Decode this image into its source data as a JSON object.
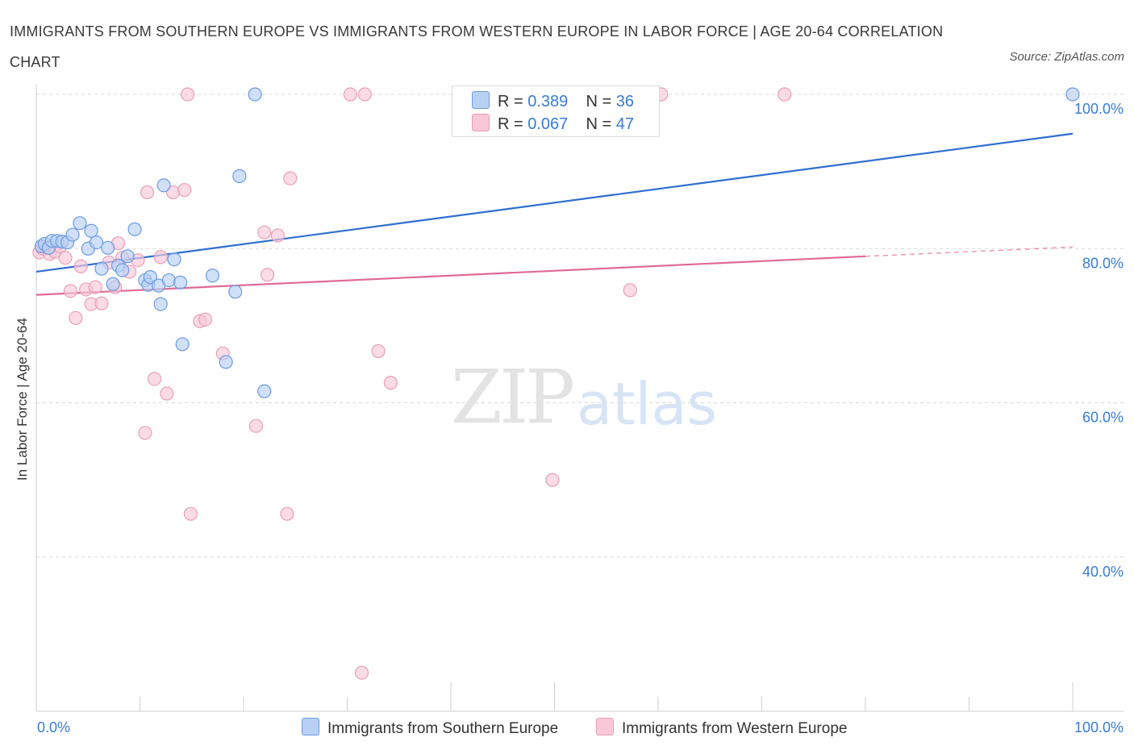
{
  "title": "IMMIGRANTS FROM SOUTHERN EUROPE VS IMMIGRANTS FROM WESTERN EUROPE IN LABOR FORCE | AGE 20-64 CORRELATION CHART",
  "source": "Source: ZipAtlas.com",
  "watermark": {
    "zip": "ZIP",
    "atlas": "atlas"
  },
  "legend_top": [
    {
      "r_label": "R =",
      "r_value": "0.389",
      "n_label": "N =",
      "n_value": "36"
    },
    {
      "r_label": "R =",
      "r_value": "0.067",
      "n_label": "N =",
      "n_value": "47"
    }
  ],
  "colors": {
    "blue_fill": "#b7d0f4",
    "blue_stroke": "#6b9be0",
    "blue_line": "#2e6fd0",
    "pink_fill": "#f8c8d8",
    "pink_stroke": "#e8a0b8",
    "pink_line": "#e06a96",
    "tick_label": "#3a7bd5",
    "grid": "#d8d8d8"
  },
  "chart_data": {
    "type": "scatter",
    "title": "IMMIGRANTS FROM SOUTHERN EUROPE VS IMMIGRANTS FROM WESTERN EUROPE IN LABOR FORCE | AGE 20-64 CORRELATION CHART",
    "xlabel": "",
    "ylabel": "In Labor Force | Age 20-64",
    "xlim": [
      0,
      100
    ],
    "ylim": [
      20,
      100
    ],
    "x_tick_labels": [
      "0.0%",
      "100.0%"
    ],
    "y_ticks": [
      40,
      60,
      80,
      100
    ],
    "y_tick_labels": [
      "40.0%",
      "60.0%",
      "80.0%",
      "100.0%"
    ],
    "grid": true,
    "legend_position": "top-center",
    "series": [
      {
        "name": "Immigrants from Southern Europe",
        "color": "#6b9be0",
        "trend": {
          "x": [
            0,
            100
          ],
          "y": [
            77.0,
            94.9
          ]
        },
        "points": [
          [
            0.5,
            80.3
          ],
          [
            0.8,
            80.6
          ],
          [
            1.2,
            80.1
          ],
          [
            1.5,
            81.0
          ],
          [
            2.0,
            81.0
          ],
          [
            2.5,
            80.9
          ],
          [
            3.0,
            80.8
          ],
          [
            3.5,
            81.8
          ],
          [
            4.2,
            83.3
          ],
          [
            5.0,
            80.0
          ],
          [
            5.3,
            82.3
          ],
          [
            5.8,
            80.8
          ],
          [
            6.3,
            77.4
          ],
          [
            6.9,
            80.1
          ],
          [
            7.4,
            75.4
          ],
          [
            7.9,
            77.8
          ],
          [
            8.3,
            77.2
          ],
          [
            8.8,
            79.0
          ],
          [
            9.5,
            82.5
          ],
          [
            10.5,
            75.9
          ],
          [
            10.8,
            75.3
          ],
          [
            11.0,
            76.3
          ],
          [
            11.8,
            75.2
          ],
          [
            12.0,
            72.8
          ],
          [
            12.3,
            88.2
          ],
          [
            12.8,
            75.9
          ],
          [
            13.3,
            78.6
          ],
          [
            13.9,
            75.6
          ],
          [
            14.1,
            67.6
          ],
          [
            17.0,
            76.5
          ],
          [
            18.3,
            65.3
          ],
          [
            19.2,
            74.4
          ],
          [
            19.6,
            89.4
          ],
          [
            21.1,
            100.0
          ],
          [
            22.0,
            61.5
          ],
          [
            100.0,
            100.0
          ]
        ]
      },
      {
        "name": "Immigrants from Western Europe",
        "color": "#e8a0b8",
        "trend": {
          "x": [
            0,
            80
          ],
          "y": [
            74.0,
            79.0
          ]
        },
        "trend_dashed": {
          "x": [
            80,
            100
          ],
          "y": [
            79.0,
            80.2
          ]
        },
        "points": [
          [
            0.3,
            79.5
          ],
          [
            0.6,
            80.0
          ],
          [
            1.0,
            80.1
          ],
          [
            1.3,
            79.3
          ],
          [
            1.8,
            79.6
          ],
          [
            2.3,
            80.3
          ],
          [
            2.8,
            78.8
          ],
          [
            3.3,
            74.5
          ],
          [
            3.8,
            71.0
          ],
          [
            4.3,
            77.7
          ],
          [
            4.8,
            74.7
          ],
          [
            5.3,
            72.8
          ],
          [
            5.7,
            75.0
          ],
          [
            6.3,
            72.9
          ],
          [
            7.0,
            78.2
          ],
          [
            7.6,
            75.0
          ],
          [
            7.9,
            80.7
          ],
          [
            8.3,
            78.8
          ],
          [
            9.0,
            77.0
          ],
          [
            9.8,
            78.5
          ],
          [
            10.5,
            56.1
          ],
          [
            10.7,
            87.3
          ],
          [
            11.4,
            63.1
          ],
          [
            12.0,
            78.9
          ],
          [
            12.6,
            61.2
          ],
          [
            13.2,
            87.3
          ],
          [
            14.3,
            87.6
          ],
          [
            14.6,
            100.0
          ],
          [
            14.9,
            45.6
          ],
          [
            15.8,
            70.6
          ],
          [
            16.3,
            70.8
          ],
          [
            18.0,
            66.4
          ],
          [
            21.2,
            57.0
          ],
          [
            22.0,
            82.1
          ],
          [
            22.3,
            76.6
          ],
          [
            23.3,
            81.7
          ],
          [
            24.2,
            45.6
          ],
          [
            24.5,
            89.1
          ],
          [
            30.3,
            100.0
          ],
          [
            31.4,
            25.0
          ],
          [
            31.7,
            100.0
          ],
          [
            33.0,
            66.7
          ],
          [
            34.2,
            62.6
          ],
          [
            49.8,
            50.0
          ],
          [
            57.3,
            74.6
          ],
          [
            60.3,
            100.0
          ],
          [
            72.2,
            100.0
          ]
        ]
      }
    ]
  },
  "bottom_legend": [
    "Immigrants from Southern Europe",
    "Immigrants from Western Europe"
  ]
}
